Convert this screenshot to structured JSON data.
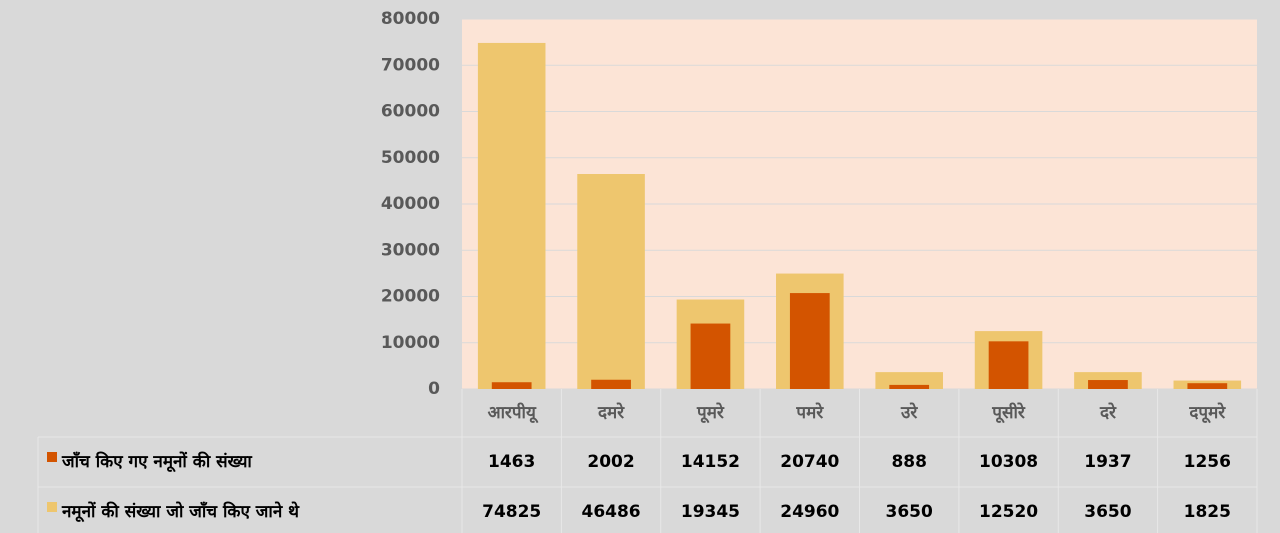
{
  "chart_data": {
    "type": "bar",
    "categories": [
      "आरपीयू",
      "दमरे",
      "पूमरे",
      "पमरे",
      "उरे",
      "पूसीरे",
      "दरे",
      "दपूमरे"
    ],
    "series": [
      {
        "name": "जाँच किए गए नमूनों की संख्या",
        "color": "#d35400",
        "values": [
          1463,
          2002,
          14152,
          20740,
          888,
          10308,
          1937,
          1256
        ]
      },
      {
        "name": "नमूनों की संख्या जो जाँच किए जाने थे",
        "color": "#eec66e",
        "values": [
          74825,
          46486,
          19345,
          24960,
          3650,
          12520,
          3650,
          1825
        ]
      }
    ],
    "ylim": [
      0,
      80000
    ],
    "yticks": [
      0,
      10000,
      20000,
      30000,
      40000,
      50000,
      60000,
      70000,
      80000
    ],
    "grid": true
  }
}
